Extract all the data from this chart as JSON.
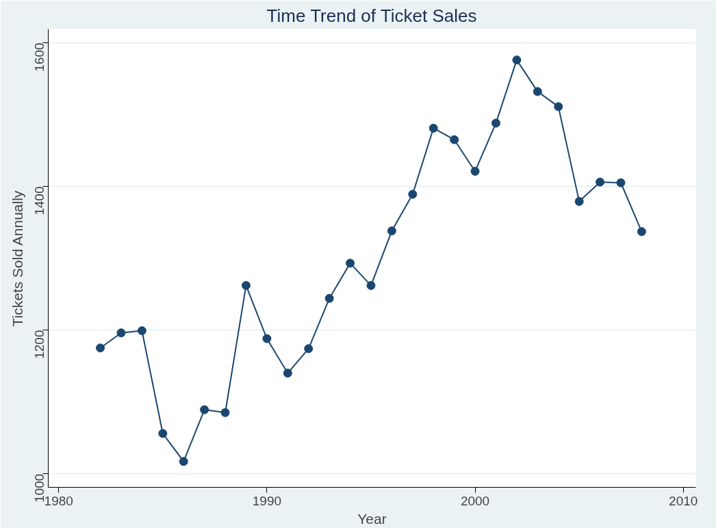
{
  "chart_data": {
    "type": "line",
    "title": "Time Trend of Ticket Sales",
    "xlabel": "Year",
    "ylabel": "Tickets Sold Annually",
    "x": [
      1982,
      1983,
      1984,
      1985,
      1986,
      1987,
      1988,
      1989,
      1990,
      1991,
      1992,
      1993,
      1994,
      1995,
      1996,
      1997,
      1998,
      1999,
      2000,
      2001,
      2002,
      2003,
      2004,
      2005,
      2006,
      2007,
      2008
    ],
    "series": [
      {
        "color": "#1a476f",
        "values": [
          1175,
          1196,
          1199,
          1056,
          1017,
          1089,
          1085,
          1262,
          1188,
          1140,
          1174,
          1244,
          1293,
          1262,
          1338,
          1389,
          1481,
          1465,
          1421,
          1488,
          1576,
          1532,
          1511,
          1379,
          1406,
          1405,
          1337
        ]
      }
    ],
    "xlim": [
      1979.5,
      2010.6
    ],
    "ylim": [
      981,
      1619
    ],
    "xticks": [
      1980,
      1990,
      2000,
      2010
    ],
    "yticks": [
      1000,
      1200,
      1400,
      1600
    ],
    "grid": "y",
    "marker": "circle",
    "line_style": "solid"
  }
}
